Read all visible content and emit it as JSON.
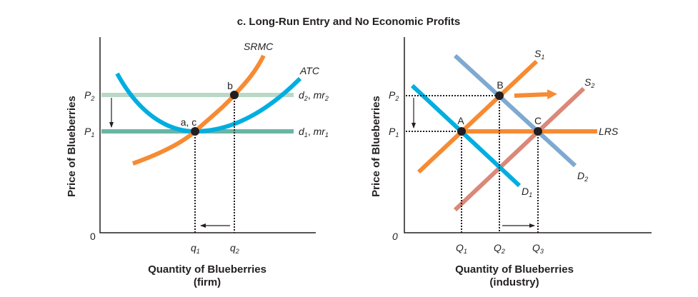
{
  "title": "c. Long-Run Entry and No Economic Profits",
  "colors": {
    "atc": "#00aee0",
    "srmc": "#f68b33",
    "d2_firm": "#b9d8c5",
    "d1_firm": "#6ab5a4",
    "d1_industry": "#00aee0",
    "d2_industry": "#7fa9d0",
    "s1": "#f68b33",
    "s2": "#da8878",
    "lrs": "#f68b33",
    "shift_arrow": "#f68b33"
  },
  "firm": {
    "ylabel": "Price of Blueberries",
    "xlabel": "Quantity of Blueberries",
    "xlabel_sub": "(firm)",
    "origin": "0",
    "p2": {
      "base": "P",
      "sub": "2"
    },
    "p1": {
      "base": "P",
      "sub": "1"
    },
    "q1": {
      "base": "q",
      "sub": "1"
    },
    "q2": {
      "base": "q",
      "sub": "2"
    },
    "srmc_label": "SRMC",
    "atc_label": "ATC",
    "d2_label": {
      "d": "d",
      "dsub": "2",
      "sep": ", ",
      "mr": "mr",
      "mrsub": "2"
    },
    "d1_label": {
      "d": "d",
      "dsub": "1",
      "sep": ", ",
      "mr": "mr",
      "mrsub": "1"
    },
    "point_b": "b",
    "point_ac": "a, c"
  },
  "industry": {
    "ylabel": "Price of Blueberries",
    "xlabel": "Quantity of Blueberries",
    "xlabel_sub": "(industry)",
    "origin": "0",
    "p2": {
      "base": "P",
      "sub": "2"
    },
    "p1": {
      "base": "P",
      "sub": "1"
    },
    "q1": {
      "base": "Q",
      "sub": "1"
    },
    "q2": {
      "base": "Q",
      "sub": "2"
    },
    "q3": {
      "base": "Q",
      "sub": "3"
    },
    "s1": {
      "base": "S",
      "sub": "1"
    },
    "s2": {
      "base": "S",
      "sub": "2"
    },
    "d1": {
      "base": "D",
      "sub": "1"
    },
    "d2": {
      "base": "D",
      "sub": "2"
    },
    "lrs_label": "LRS",
    "point_a": "A",
    "point_b": "B",
    "point_c": "C"
  }
}
